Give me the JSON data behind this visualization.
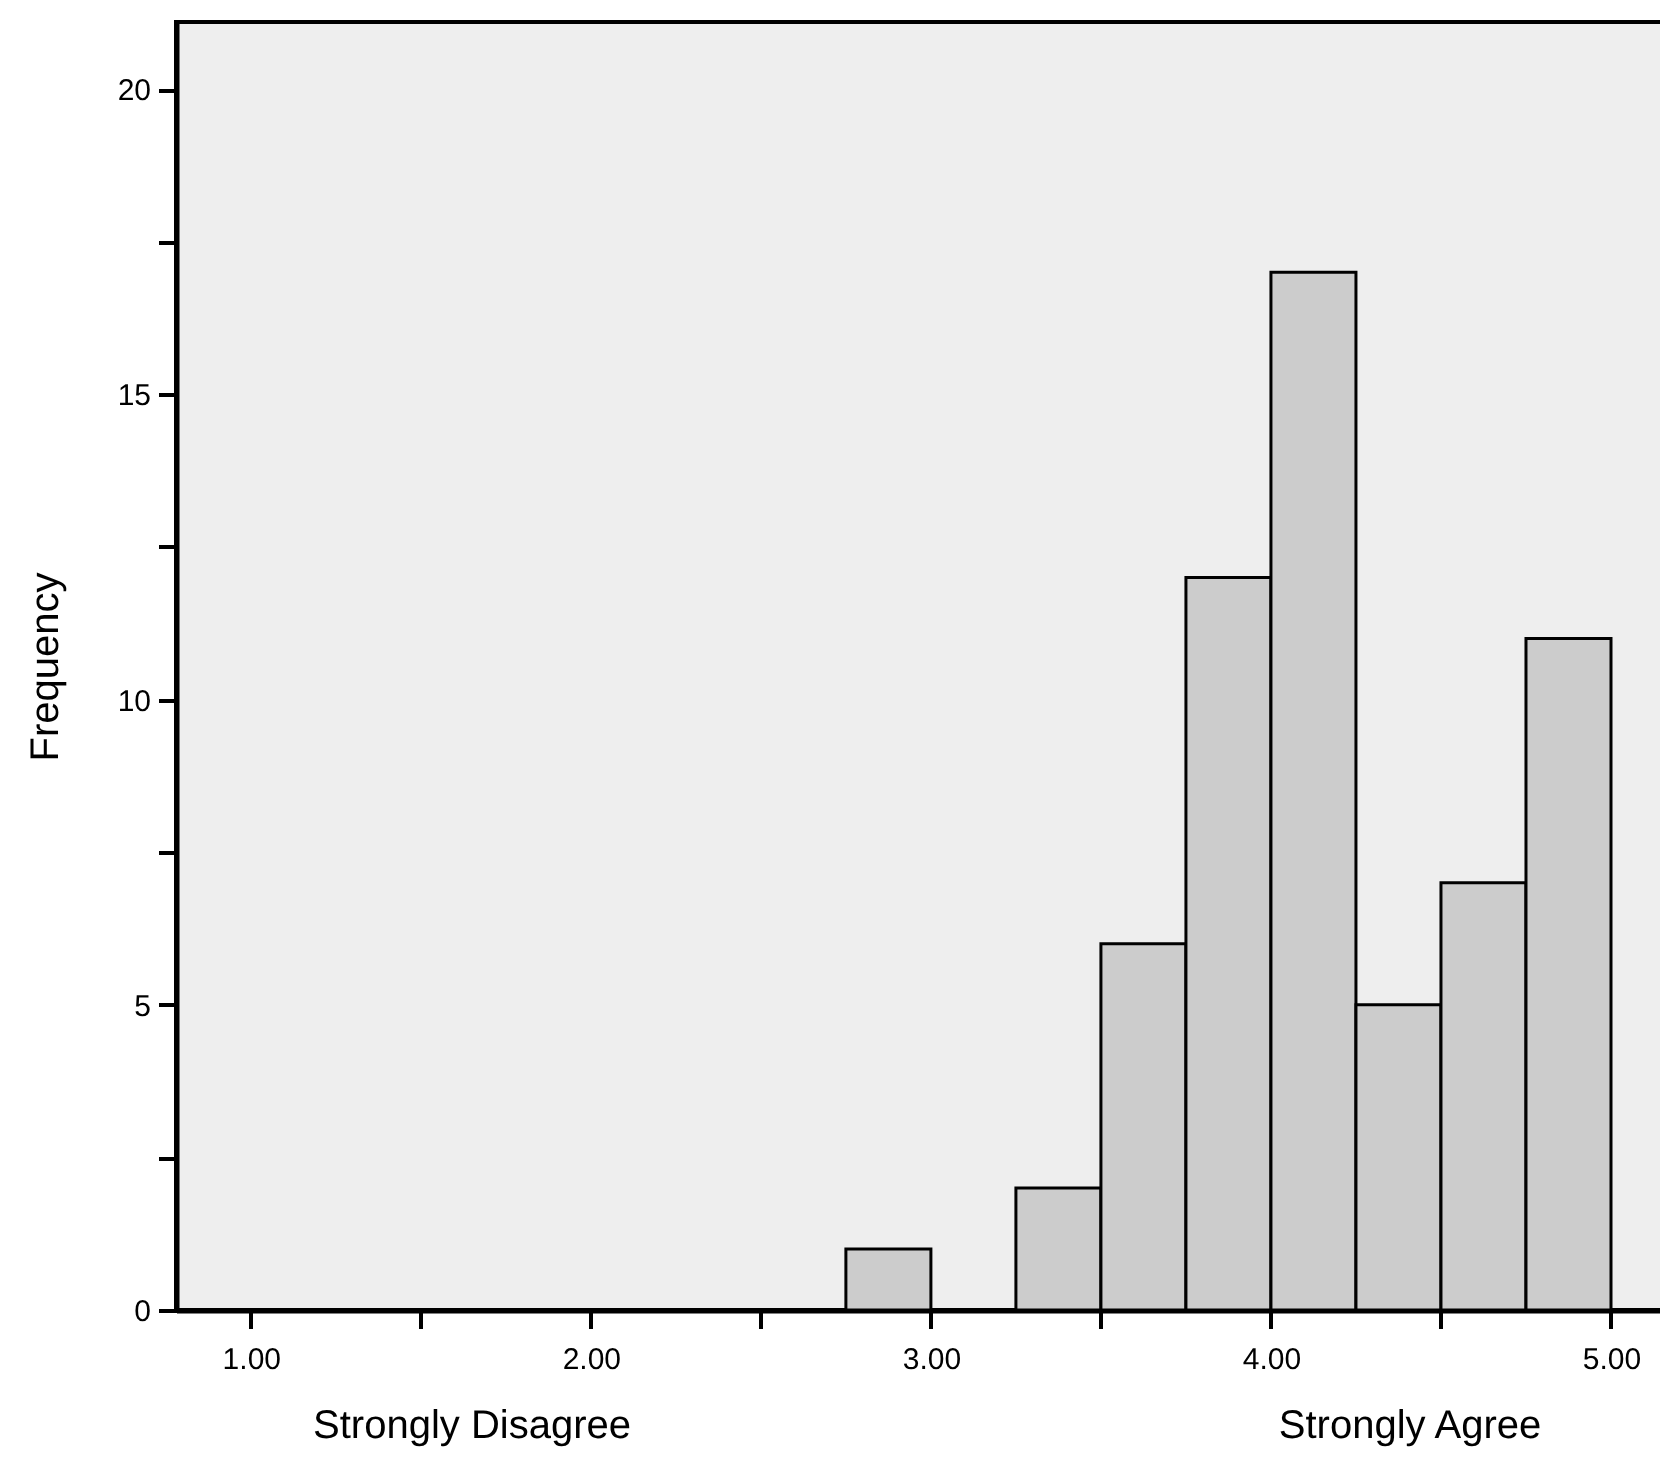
{
  "chart_data": {
    "type": "histogram",
    "ylabel": "Frequency",
    "annotations": [
      "Strongly Disagree",
      "Strongly Agree"
    ],
    "bins": [
      2.75,
      3.0,
      3.25,
      3.5,
      3.75,
      4.0,
      4.25,
      4.5,
      4.75,
      5.0
    ],
    "values": [
      1,
      0,
      2,
      6,
      12,
      17,
      5,
      7,
      11
    ],
    "color": "#cccccc",
    "xlim": [
      0.78,
      5.15
    ],
    "xticks": [
      {
        "value": 1,
        "label": "1.00"
      },
      {
        "value": 1.5,
        "label": null
      },
      {
        "value": 2,
        "label": "2.00"
      },
      {
        "value": 2.5,
        "label": null
      },
      {
        "value": 3,
        "label": "3.00"
      },
      {
        "value": 3.5,
        "label": null
      },
      {
        "value": 4,
        "label": "4.00"
      },
      {
        "value": 4.5,
        "label": null
      },
      {
        "value": 5,
        "label": "5.00"
      }
    ],
    "ylim": [
      0,
      21.1
    ],
    "yticks": [
      0,
      {
        "value": 2.5,
        "label": null
      },
      5,
      {
        "value": 7.5,
        "label": null
      },
      10,
      {
        "value": 12.5,
        "label": null
      },
      15,
      {
        "value": 17.5,
        "label": null
      },
      20
    ],
    "grid": false
  }
}
